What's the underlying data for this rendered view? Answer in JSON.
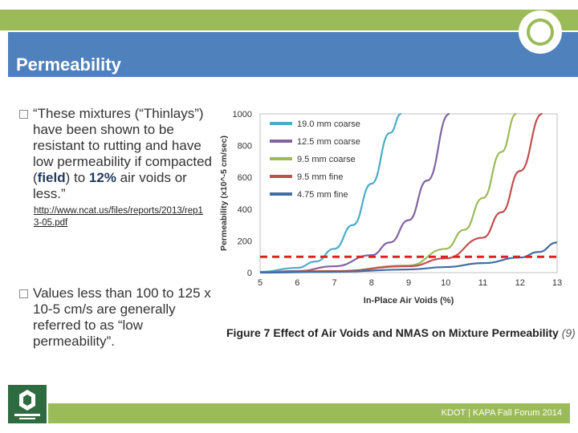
{
  "header": {
    "title": "Permeability",
    "accent_green": "#9bbb59",
    "accent_blue": "#4f81bd"
  },
  "bullets": [
    {
      "text_a": "“These mixtures (“Thinlays”) have been shown to be resistant to rutting and have low permeability if compacted (",
      "highlight_a": "field",
      "text_b": ") to ",
      "highlight_b": "12%",
      "text_c": " air voids or less.”",
      "link": "http://www.ncat.us/files/reports/2013/rep13-05.pdf"
    },
    {
      "text": "Values less than 100 to 125 x 10-5 cm/s are generally referred to as “low permeability”."
    }
  ],
  "chart_data": {
    "type": "line",
    "title": "",
    "xlabel": "In-Place Air Voids (%)",
    "ylabel": "Permeability (x10^-5 cm/sec)",
    "xlim": [
      5,
      13
    ],
    "ylim": [
      0,
      1000
    ],
    "x_ticks": [
      5,
      6,
      7,
      8,
      9,
      10,
      11,
      12,
      13
    ],
    "y_ticks": [
      0,
      200,
      400,
      600,
      800,
      1000
    ],
    "threshold": {
      "value": 100,
      "color": "#e02020",
      "style": "dashed"
    },
    "series": [
      {
        "name": "19.0 mm coarse",
        "color": "#4bacc6",
        "x": [
          5,
          6,
          6.5,
          7,
          7.5,
          8,
          8.5,
          8.8
        ],
        "y": [
          5,
          30,
          70,
          150,
          300,
          560,
          880,
          1000
        ]
      },
      {
        "name": "12.5 mm coarse",
        "color": "#8064a2",
        "x": [
          5,
          6,
          7,
          8,
          8.5,
          9,
          9.5,
          10.1
        ],
        "y": [
          3,
          10,
          40,
          110,
          190,
          330,
          580,
          1000
        ]
      },
      {
        "name": "9.5 mm coarse",
        "color": "#9bbb59",
        "x": [
          5,
          7,
          9,
          10,
          10.5,
          11,
          11.5,
          11.9
        ],
        "y": [
          2,
          8,
          45,
          150,
          270,
          470,
          760,
          1000
        ]
      },
      {
        "name": "9.5 mm fine",
        "color": "#c0504d",
        "x": [
          5,
          7,
          9,
          10,
          11,
          11.5,
          12,
          12.6
        ],
        "y": [
          2,
          10,
          40,
          90,
          220,
          380,
          640,
          1000
        ]
      },
      {
        "name": "4.75 mm fine",
        "color": "#3f6fa3",
        "x": [
          5,
          7,
          9,
          10,
          11,
          12,
          12.5,
          13
        ],
        "y": [
          0,
          5,
          20,
          35,
          60,
          95,
          130,
          190
        ]
      }
    ],
    "caption_bold": "Figure 7  Effect of Air Voids and NMAS on Mixture Permeability",
    "caption_ref": "(9)"
  },
  "footer": {
    "text": "KDOT | KAPA Fall Forum 2014"
  }
}
